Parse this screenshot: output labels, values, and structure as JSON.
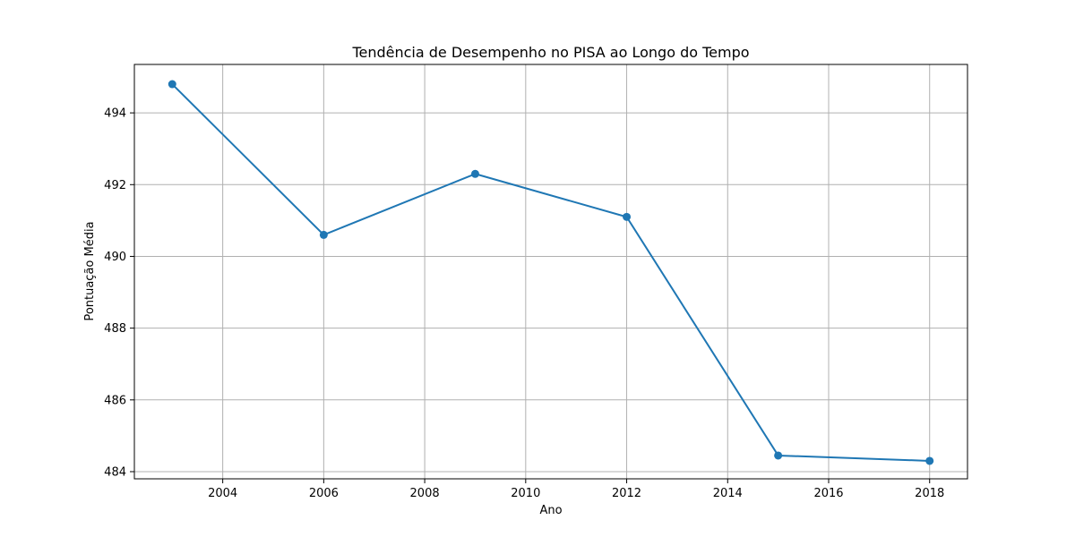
{
  "chart_data": {
    "type": "line",
    "title": "Tendência de Desempenho no PISA ao Longo do Tempo",
    "xlabel": "Ano",
    "ylabel": "Pontuação Média",
    "x": [
      2003,
      2006,
      2009,
      2012,
      2015,
      2018
    ],
    "series": [
      {
        "values": [
          494.8,
          490.6,
          492.3,
          491.1,
          484.45,
          484.3
        ]
      }
    ],
    "xlim": [
      2002.25,
      2018.75
    ],
    "ylim": [
      483.8,
      495.35
    ],
    "xticks": [
      2004,
      2006,
      2008,
      2010,
      2012,
      2014,
      2016,
      2018
    ],
    "yticks": [
      484,
      486,
      488,
      490,
      492,
      494
    ],
    "grid": true,
    "marker": "circle",
    "line_color": "#1f77b4"
  }
}
